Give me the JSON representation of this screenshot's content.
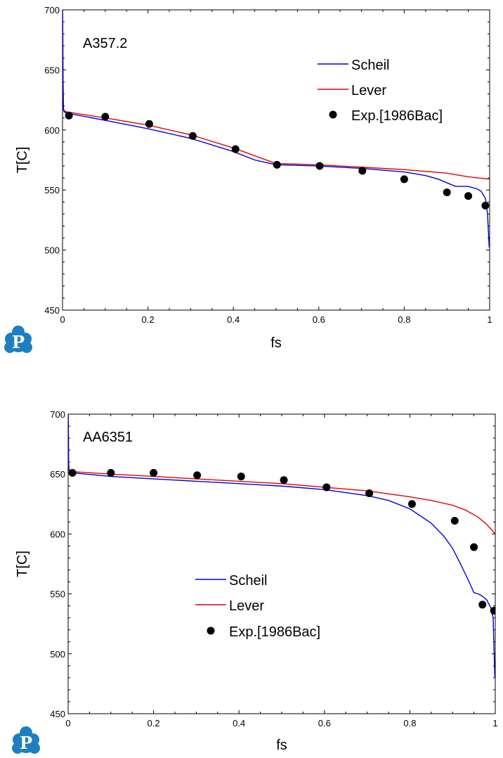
{
  "colors": {
    "scheil": "#0000dd",
    "lever": "#e00000",
    "exp": "#000000",
    "logo": "#1e7fc0"
  },
  "logo": {
    "icon": "pandat-p-logo-icon",
    "letter": "P"
  },
  "chart_data": [
    {
      "type": "line",
      "title": "A357.2",
      "xlabel": "fs",
      "ylabel": "T[C]",
      "xlim": [
        0,
        1
      ],
      "ylim": [
        450,
        700
      ],
      "xticks": [
        "0",
        "0.2",
        "0.4",
        "0.6",
        "0.8",
        "1"
      ],
      "yticks": [
        "450",
        "500",
        "550",
        "600",
        "650",
        "700"
      ],
      "legend_position": "top-right",
      "grid": false,
      "series": [
        {
          "name": "Scheil",
          "kind": "line",
          "x": [
            0,
            0.0005,
            0.001,
            0.002,
            0.004,
            0.01,
            0.1,
            0.2,
            0.3,
            0.4,
            0.45,
            0.5,
            0.6,
            0.7,
            0.8,
            0.85,
            0.88,
            0.9,
            0.92,
            0.95,
            0.97,
            0.98,
            0.99,
            0.995,
            0.999
          ],
          "y": [
            700,
            690,
            650,
            617,
            615,
            614,
            608,
            601,
            593,
            582,
            575,
            571,
            570,
            568,
            565,
            562,
            559,
            556,
            553,
            553,
            551,
            549,
            543,
            530,
            502
          ]
        },
        {
          "name": "Lever",
          "kind": "line",
          "x": [
            0,
            0.0005,
            0.001,
            0.002,
            0.004,
            0.01,
            0.1,
            0.2,
            0.3,
            0.4,
            0.5,
            0.6,
            0.7,
            0.8,
            0.9,
            0.95,
            1.0
          ],
          "y": [
            700,
            690,
            650,
            618,
            616,
            615,
            610,
            604,
            596,
            585,
            572,
            571,
            569,
            567,
            564,
            561,
            559
          ]
        },
        {
          "name": "Exp.[1986Bac]",
          "kind": "scatter",
          "x": [
            0.015,
            0.1,
            0.203,
            0.305,
            0.405,
            0.502,
            0.602,
            0.702,
            0.8,
            0.9,
            0.95,
            0.99
          ],
          "y": [
            612,
            611,
            605,
            595,
            584,
            571,
            570,
            566,
            559,
            548,
            545,
            537
          ]
        }
      ]
    },
    {
      "type": "line",
      "title": "AA6351",
      "xlabel": "fs",
      "ylabel": "T[C]",
      "xlim": [
        0,
        1
      ],
      "ylim": [
        450,
        700
      ],
      "xticks": [
        "0",
        "0.2",
        "0.4",
        "0.6",
        "0.8",
        "1"
      ],
      "yticks": [
        "450",
        "500",
        "550",
        "600",
        "650",
        "700"
      ],
      "legend_position": "center-left",
      "grid": false,
      "series": [
        {
          "name": "Scheil",
          "kind": "line",
          "x": [
            0,
            0.0005,
            0.001,
            0.002,
            0.004,
            0.01,
            0.1,
            0.2,
            0.3,
            0.4,
            0.5,
            0.6,
            0.7,
            0.75,
            0.8,
            0.85,
            0.88,
            0.9,
            0.92,
            0.94,
            0.95,
            0.96,
            0.97,
            0.98,
            0.99,
            0.995,
            0.999
          ],
          "y": [
            700,
            690,
            660,
            653,
            652,
            651,
            648,
            646,
            644,
            642,
            640,
            637,
            632,
            628,
            621,
            609,
            598,
            588,
            574,
            559,
            551,
            550,
            548,
            545,
            538,
            530,
            480
          ]
        },
        {
          "name": "Lever",
          "kind": "line",
          "x": [
            0,
            0.0005,
            0.001,
            0.002,
            0.004,
            0.01,
            0.1,
            0.2,
            0.3,
            0.4,
            0.5,
            0.6,
            0.7,
            0.8,
            0.85,
            0.9,
            0.93,
            0.96,
            0.98,
            1.0
          ],
          "y": [
            700,
            690,
            660,
            654,
            653,
            652,
            650,
            648,
            646,
            644,
            642,
            639,
            636,
            631,
            628,
            624,
            620,
            614,
            608,
            600
          ]
        },
        {
          "name": "Exp.[1986Bac]",
          "kind": "scatter",
          "x": [
            0.01,
            0.1,
            0.2,
            0.302,
            0.405,
            0.505,
            0.605,
            0.705,
            0.805,
            0.905,
            0.95,
            0.97,
            0.997
          ],
          "y": [
            651,
            651,
            651,
            649,
            648,
            645,
            639,
            634,
            625,
            611,
            589,
            541,
            536
          ]
        }
      ]
    }
  ]
}
